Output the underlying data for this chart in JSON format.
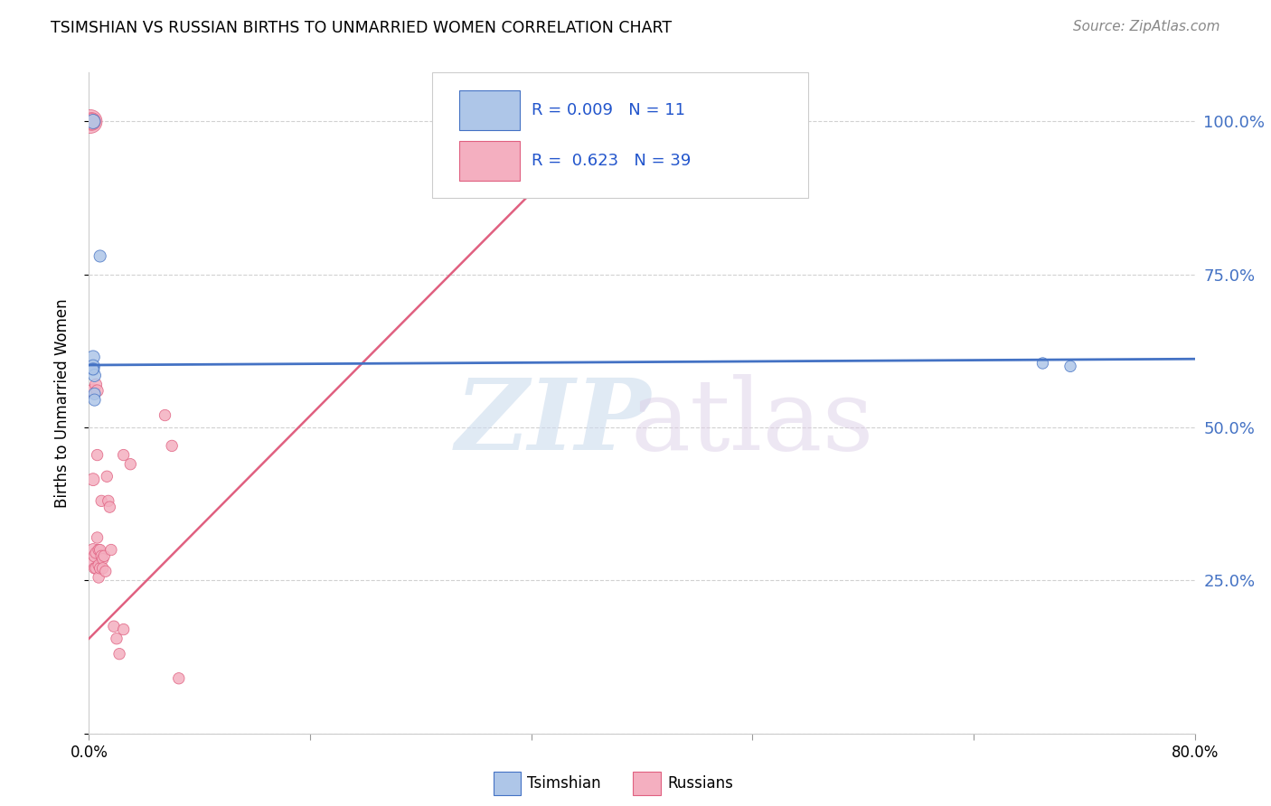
{
  "title": "TSIMSHIAN VS RUSSIAN BIRTHS TO UNMARRIED WOMEN CORRELATION CHART",
  "source": "Source: ZipAtlas.com",
  "ylabel": "Births to Unmarried Women",
  "ytick_labels": [
    "",
    "25.0%",
    "50.0%",
    "75.0%",
    "100.0%"
  ],
  "ytick_values": [
    0.0,
    0.25,
    0.5,
    0.75,
    1.0
  ],
  "xlim": [
    0.0,
    0.8
  ],
  "ylim": [
    0.0,
    1.08
  ],
  "background_color": "#ffffff",
  "grid_color": "#cccccc",
  "tsimshian_R": 0.009,
  "tsimshian_N": 11,
  "russian_R": 0.623,
  "russian_N": 39,
  "tsimshian_color": "#aec6e8",
  "russian_color": "#f4afc0",
  "tsimshian_line_color": "#4472c4",
  "russian_line_color": "#e06080",
  "right_axis_color": "#4472c4",
  "legend_color": "#2255cc",
  "tsimshian_x": [
    0.003,
    0.008,
    0.003,
    0.003,
    0.003,
    0.004,
    0.004,
    0.004,
    0.69,
    0.71,
    0.003
  ],
  "tsimshian_y": [
    1.0,
    0.78,
    0.615,
    0.6,
    0.595,
    0.585,
    0.555,
    0.545,
    0.605,
    0.6,
    0.595
  ],
  "tsimshian_size": [
    130,
    90,
    110,
    110,
    100,
    100,
    90,
    90,
    80,
    80,
    80
  ],
  "russian_x": [
    0.001,
    0.002,
    0.002,
    0.003,
    0.003,
    0.003,
    0.003,
    0.004,
    0.004,
    0.005,
    0.005,
    0.005,
    0.006,
    0.006,
    0.006,
    0.007,
    0.007,
    0.007,
    0.008,
    0.008,
    0.009,
    0.009,
    0.01,
    0.01,
    0.011,
    0.012,
    0.013,
    0.014,
    0.015,
    0.016,
    0.018,
    0.02,
    0.022,
    0.025,
    0.025,
    0.03,
    0.055,
    0.06,
    0.065
  ],
  "russian_y": [
    1.0,
    1.0,
    1.0,
    0.56,
    0.415,
    0.3,
    0.28,
    0.29,
    0.27,
    0.57,
    0.295,
    0.27,
    0.56,
    0.455,
    0.32,
    0.3,
    0.275,
    0.255,
    0.3,
    0.27,
    0.38,
    0.29,
    0.285,
    0.27,
    0.29,
    0.265,
    0.42,
    0.38,
    0.37,
    0.3,
    0.175,
    0.155,
    0.13,
    0.455,
    0.17,
    0.44,
    0.52,
    0.47,
    0.09
  ],
  "russian_size": [
    350,
    200,
    160,
    120,
    100,
    100,
    80,
    90,
    80,
    90,
    80,
    80,
    90,
    80,
    80,
    80,
    80,
    80,
    80,
    80,
    80,
    80,
    80,
    80,
    80,
    80,
    80,
    80,
    80,
    80,
    80,
    80,
    80,
    80,
    80,
    80,
    80,
    80,
    80
  ],
  "rus_trendline_x0": 0.0,
  "rus_trendline_y0": 0.155,
  "rus_trendline_x1": 0.38,
  "rus_trendline_y1": 1.02,
  "tsim_trendline_x0": 0.0,
  "tsim_trendline_x1": 0.8,
  "tsim_trendline_y0": 0.602,
  "tsim_trendline_y1": 0.612
}
